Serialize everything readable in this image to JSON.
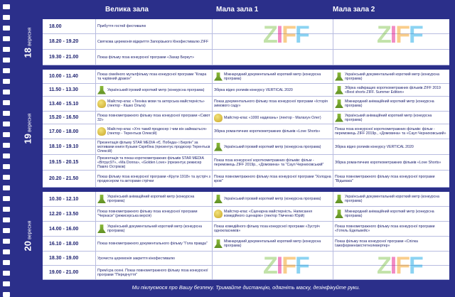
{
  "columns": {
    "big_hall": "Велика зала",
    "small_hall_1": "Мала зала 1",
    "small_hall_2": "Мала зала 2"
  },
  "days": [
    {
      "number": "18",
      "label": "вересня"
    },
    {
      "number": "19",
      "label": "вересня"
    },
    {
      "number": "20",
      "label": "вересня"
    }
  ],
  "day1": [
    {
      "time": "18.00",
      "c1": "Прибуття гостей фестивалю",
      "c2": "",
      "c3": ""
    },
    {
      "time": "18.20 - 19.20",
      "c1": "Святкова церемонія відкриття Запорізького Кінофестивалю ZIFF",
      "c2": "",
      "c3": ""
    },
    {
      "time": "19.30 - 21.00",
      "c1": "Показ фільму поза конкурсної програми «Захар Беркут»",
      "c2": "",
      "c3": ""
    }
  ],
  "day2": [
    {
      "time": "10.00 - 11.40",
      "c1": "Показ сімейного мультфільму поза конкурсної програми \"Клара та чарівний дракон\"",
      "c2": "Міжнародний документальний короткий метр (конкурсна програма)",
      "c3": "Український документальний короткий метр (конкурсна програма)"
    },
    {
      "time": "11.50 - 13.30",
      "c1": "Український ігровий короткий метр (конкурсна програма)",
      "c2": "Збірка відео роликів конкурсу VERTICAL 2020",
      "c3": "Збірка найкращих короткометражних фільмів ZIFF 2019 «Best shorts ZIFF. Summer Edition»"
    },
    {
      "time": "13.40 - 15.10",
      "c1": "Майстер-клас «Техніка мови та акторська майстерність» (лектор - Кішко Ольга)",
      "c2": "Показ документального фільму поза конкурсної програми «Історія зимового саду»",
      "c3": "Міжнародний анімаційний короткий метр (конкурсна програма)"
    },
    {
      "time": "15.20 - 16.50",
      "c1": "Показ повнометражного фільму поза конкурсної програми «Сквот 32»",
      "c2": "Майстер-клас «1000 надихань» (лектор - Малахун Олег)",
      "c3": "Український анімаційний короткий метр (конкурсна програма)"
    },
    {
      "time": "17.00 - 18.00",
      "c1": "Майстер-клас «Хто такий продюсер і чим він займається» (лектор - Терентьєв Олексій)",
      "c2": "Збірка романтичних короткометражних фільмів «Love Shorts»",
      "c3": "Показ поза конкурсної короткометражних фільмів: фільм - переможець ZIFF 2019р., «Домовина» та «Саул Черниховський»"
    },
    {
      "time": "18.10 - 19.10",
      "c1": "Презентація фільму STAR MEDIA «Є. Победа» і Берлін\" за мотивами книги Кузьми Скрябіна (презентує продюсер Терентьєв Олексій)",
      "c2": "Український ігровий короткий метр (конкурсна програма)",
      "c3": "Збірка відео роликів конкурсу VERTICAL 2020"
    },
    {
      "time": "19.15 - 20.15",
      "c1": "Презентація та показ короткометражних фільмів STAR MEDIA «Вітрус97», «Ma Donna», «Golden Love» (презентує режисер Павло Остріков)",
      "c2": "Показ поза конкурсної короткометражних фільмів: фільм - переможець ZIFF 2019р., «Домовина» та \"Саул Черниховський\"",
      "c3": "Збірка романтичних короткометражних фільмів «Love Shorts»"
    },
    {
      "time": "20.20 - 21.50",
      "c1": "Показ фільму поза конкурсної програми «Крути 1918» та зустріч з продюсером та акторами стрічки",
      "c2": "Показ повнометражного фільму поза конкурсної програми \"Холодна кров\"",
      "c3": "Показ повнометражного фільму поза конкурсної програми \"Відьмака\""
    }
  ],
  "day3": [
    {
      "time": "10.30 - 12.10",
      "c1": "Український анімаційний короткий метр (конкурсна програма)",
      "c2": "Український ігровий короткий метр (конкурсна програма)",
      "c3": "Український документальний короткий метр (конкурсна програма)"
    },
    {
      "time": "12.20 - 13.50",
      "c1": "Показ повнометражного фільму поза конкурсної програми \"Черкаси\" (режисерська версія)",
      "c2": "Майстер-клас «Сценарна майстерність. Написання комедійного сценарію» (лектор Тімченко Юрій)",
      "c3": "Міжнародний анімаційний короткий метр (конкурсна програма)"
    },
    {
      "time": "14.00 - 16.00",
      "c1": "Український документальний короткий метр (конкурсна програма)",
      "c2": "Показ комедійного фільму поза конкурсної програми «Зустріч однокласників»",
      "c3": "Показ повнометражного фільму поза конкурсної програми «Готель Едельвейс»"
    },
    {
      "time": "16.10 - 18.00",
      "c1": "Показ повнометражного документального фільму \"Гола правда\"",
      "c2": "Міжнародний документальний короткий метр (конкурсна програма)",
      "c3": "Показ фільму поза конкурсної програми «Спілка Ізмоформенізкістетнолевертер»"
    },
    {
      "time": "18.30 - 19.00",
      "c1": "Урочиста церемонія закриття кінофестивалю",
      "c2": "",
      "c3": ""
    },
    {
      "time": "19.00 - 21.00",
      "c1": "Прем'єра осені. Показ повнометражного фільму поза конкурсної програми \"Передчуття\"",
      "c2": "",
      "c3": ""
    }
  ],
  "footer": "Ми піклуємося про Вашу безпеку. Тримайте дистанцію, одягніть маску, дезінфікуйте руки.",
  "colors": {
    "background": "#2b2f8a",
    "text": "#1e2270",
    "grid": "#b8bce0"
  },
  "icons": [
    "lamp-icon",
    "award-icon"
  ],
  "logo_text": "ZIFF"
}
